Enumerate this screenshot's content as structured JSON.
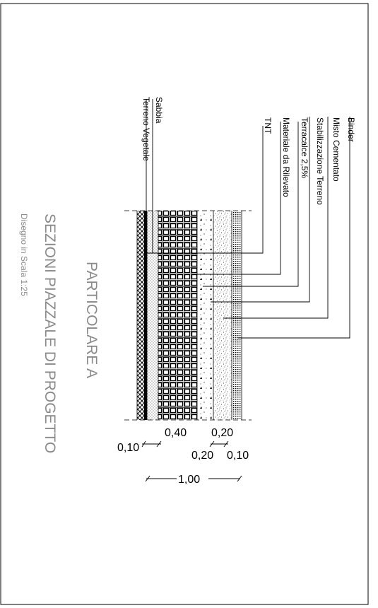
{
  "drawing": {
    "title_detail": "PARTICOLARE A",
    "title_section": "SEZIONI PIAZZALE DI PROGETTO",
    "scale_note": "Disegno in Scala 1:25",
    "colors": {
      "line": "#000000",
      "title_gray": "#8a8a8a"
    }
  },
  "layers": [
    {
      "name": "Binder",
      "thickness": "0,10"
    },
    {
      "name": "Misto Cementato",
      "thickness": "0,20"
    },
    {
      "name": "Stabilizzazione Terreno",
      "thickness": "0,20"
    },
    {
      "name": "Terracalce 2,5%",
      "thickness": ""
    },
    {
      "name": "Materiale da Rilevato",
      "thickness": "0,40"
    },
    {
      "name": "TNT",
      "thickness": ""
    },
    {
      "name": "Sabbia",
      "thickness": ""
    },
    {
      "name": "Terreno Vegetale",
      "thickness": "0,10"
    }
  ],
  "dimensions": {
    "d1": "0,10",
    "d2": "0,40",
    "d3": "0,20",
    "d4": "0,20",
    "d5": "0,10",
    "total": "1,00"
  }
}
